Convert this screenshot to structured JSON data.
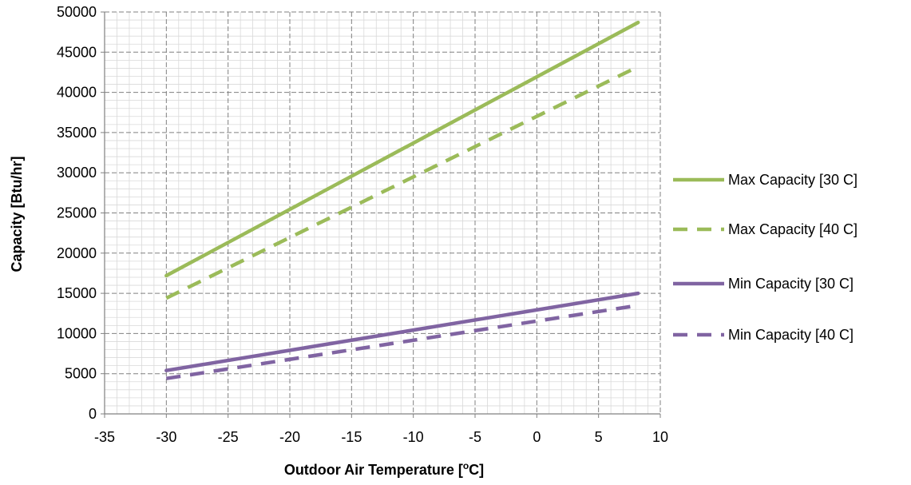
{
  "chart_data": {
    "type": "line",
    "title": "",
    "xlabel": "Outdoor Air Temperature [",
    "xlabel_sup": "o",
    "xlabel_unit": "C]",
    "ylabel": "Capacity [Btu/hr]",
    "xlim": [
      -35,
      10
    ],
    "ylim": [
      0,
      50000
    ],
    "x_ticks": [
      -35,
      -30,
      -25,
      -20,
      -15,
      -10,
      -5,
      0,
      5,
      10
    ],
    "y_ticks": [
      0,
      5000,
      10000,
      15000,
      20000,
      25000,
      30000,
      35000,
      40000,
      45000,
      50000
    ],
    "grid": true,
    "legend_position": "right",
    "series": [
      {
        "name": "Max Capacity [30 C]",
        "color": "#9BBB59",
        "dash": "solid",
        "x": [
          -30,
          8.2
        ],
        "y": [
          17200,
          48700
        ]
      },
      {
        "name": "Max Capacity [40 C]",
        "color": "#9BBB59",
        "dash": "dashed",
        "x": [
          -30,
          8.2
        ],
        "y": [
          14400,
          43200
        ]
      },
      {
        "name": "Min Capacity [30 C]",
        "color": "#8064A2",
        "dash": "solid",
        "x": [
          -30,
          8.2
        ],
        "y": [
          5400,
          15000
        ]
      },
      {
        "name": "Min Capacity [40 C]",
        "color": "#8064A2",
        "dash": "dashed",
        "x": [
          -30,
          8.2
        ],
        "y": [
          4400,
          13500
        ]
      }
    ]
  }
}
